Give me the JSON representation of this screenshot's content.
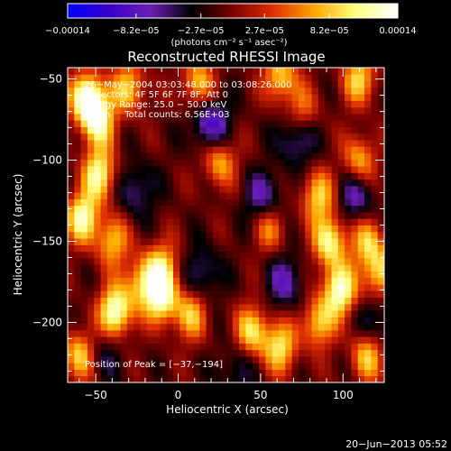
{
  "chart_data": {
    "type": "heatmap",
    "title": "Reconstructed RHESSI Image",
    "colorbar": {
      "tick_labels": [
        "−0.00014",
        "−8.2e−05",
        "−2.7e−05",
        "2.7e−05",
        "8.2e−05",
        "0.00014"
      ],
      "tick_values": [
        -0.00014,
        -8.2e-05,
        -2.7e-05,
        2.7e-05,
        8.2e-05,
        0.00014
      ],
      "range": [
        -0.00014,
        0.00014
      ],
      "units": "(photons cm⁻² s⁻¹ asec⁻²)"
    },
    "xlabel": "Heliocentric X (arcsec)",
    "ylabel": "Heliocentric Y (arcsec)",
    "xlim": [
      -67,
      125
    ],
    "ylim": [
      -237,
      -43
    ],
    "xticks": [
      -50,
      0,
      50,
      100
    ],
    "yticks": [
      -50,
      -100,
      -150,
      -200
    ],
    "xtick_labels": [
      "−50",
      "0",
      "50",
      "100"
    ],
    "ytick_labels": [
      "−50",
      "−100",
      "−150",
      "−200"
    ],
    "annotations": [
      "26−May−2004 03:03:48.000 to 03:08:26.000",
      "Detectors: 4F 5F 6F 7F 8F, Att 0",
      "Energy Range: 25.0 − 50.0 keV",
      "Clean     Total counts: 6.56E+03"
    ],
    "peak_label": "Position of Peak = [−37,−194]",
    "peak_position": [
      -37,
      -194
    ],
    "colormap": [
      "#0000ff",
      "#3a00c8",
      "#6a1fb4",
      "#000000",
      "#7a0000",
      "#e03000",
      "#ffa800",
      "#ffff80",
      "#ffffff"
    ],
    "bright_sources": [
      {
        "x": -55,
        "y": -62,
        "v": 1.0
      },
      {
        "x": -48,
        "y": -76,
        "v": 0.7
      },
      {
        "x": -30,
        "y": -55,
        "v": 0.6
      },
      {
        "x": 12,
        "y": -52,
        "v": 0.55
      },
      {
        "x": 62,
        "y": -48,
        "v": 0.6
      },
      {
        "x": 110,
        "y": -50,
        "v": 0.6
      },
      {
        "x": -48,
        "y": -108,
        "v": 0.75
      },
      {
        "x": -58,
        "y": -135,
        "v": 0.8
      },
      {
        "x": -40,
        "y": -150,
        "v": 0.55
      },
      {
        "x": 25,
        "y": -100,
        "v": 0.55
      },
      {
        "x": 85,
        "y": -122,
        "v": 0.6
      },
      {
        "x": 110,
        "y": -100,
        "v": 0.55
      },
      {
        "x": -10,
        "y": -165,
        "v": 0.55
      },
      {
        "x": 55,
        "y": -140,
        "v": 0.5
      },
      {
        "x": 92,
        "y": -150,
        "v": 0.75
      },
      {
        "x": 115,
        "y": -150,
        "v": 0.55
      },
      {
        "x": -10,
        "y": -185,
        "v": 0.8
      },
      {
        "x": -38,
        "y": -193,
        "v": 0.9
      },
      {
        "x": -22,
        "y": -175,
        "v": 0.55
      },
      {
        "x": 8,
        "y": -195,
        "v": 0.55
      },
      {
        "x": 45,
        "y": -205,
        "v": 0.65
      },
      {
        "x": 62,
        "y": -215,
        "v": 0.65
      },
      {
        "x": 85,
        "y": -200,
        "v": 0.6
      },
      {
        "x": 98,
        "y": -180,
        "v": 0.85
      },
      {
        "x": 122,
        "y": -170,
        "v": 0.6
      },
      {
        "x": 115,
        "y": -220,
        "v": 0.6
      },
      {
        "x": -60,
        "y": -220,
        "v": 0.6
      },
      {
        "x": 75,
        "y": -70,
        "v": 0.45
      }
    ],
    "dark_sources": [
      {
        "x": 20,
        "y": -78,
        "v": 1.0
      },
      {
        "x": 72,
        "y": -85,
        "v": 0.8
      },
      {
        "x": 52,
        "y": -125,
        "v": 0.85
      },
      {
        "x": -25,
        "y": -118,
        "v": 0.6
      },
      {
        "x": 108,
        "y": -122,
        "v": 0.75
      },
      {
        "x": 65,
        "y": -175,
        "v": 0.7
      },
      {
        "x": 15,
        "y": -170,
        "v": 0.6
      },
      {
        "x": 120,
        "y": -200,
        "v": 0.6
      },
      {
        "x": -45,
        "y": -220,
        "v": 0.4
      },
      {
        "x": 35,
        "y": -230,
        "v": 0.45
      }
    ]
  },
  "footer": {
    "date": "20−Jun−2013 05:52"
  }
}
